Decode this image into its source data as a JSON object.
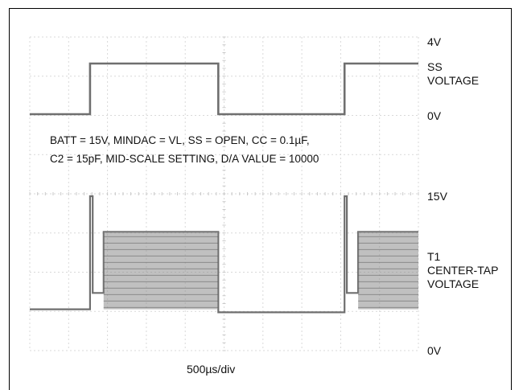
{
  "chart_data": {
    "type": "line",
    "xlabel": "500µs/div",
    "annotation": {
      "line1": "BATT = 15V, MINDAC = VL, SS = OPEN, CC = 0.1µF,",
      "line2": "C2 = 15pF, MID-SCALE SETTING, D/A VALUE = 10000"
    },
    "x_divisions": 10,
    "x_per_div_us": 500,
    "grid": true,
    "traces": [
      {
        "label_lines": [
          "SS",
          "VOLTAGE"
        ],
        "top_label": "4V",
        "bottom_label": "0V",
        "ylim": [
          0,
          4
        ],
        "x_div": [
          0,
          1.55,
          1.55,
          4.85,
          4.85,
          8.1,
          8.1,
          10
        ],
        "y": [
          0,
          0,
          4,
          4,
          0,
          0,
          4,
          4
        ]
      },
      {
        "label_lines": [
          "T1",
          "CENTER-TAP",
          "VOLTAGE"
        ],
        "top_label": "15V",
        "bottom_label": "0V",
        "ylim": [
          0,
          15
        ],
        "x_div": [
          0,
          1.55,
          1.55,
          1.62,
          1.62,
          1.9,
          1.9,
          4.85,
          4.85,
          8.1,
          8.1,
          8.16,
          8.16,
          8.45,
          8.45,
          10
        ],
        "y": [
          3.9,
          3.9,
          15,
          15,
          5.5,
          5.5,
          11.5,
          11.5,
          3.6,
          3.6,
          15,
          15,
          5.5,
          5.5,
          11.5,
          11.5
        ]
      }
    ]
  }
}
